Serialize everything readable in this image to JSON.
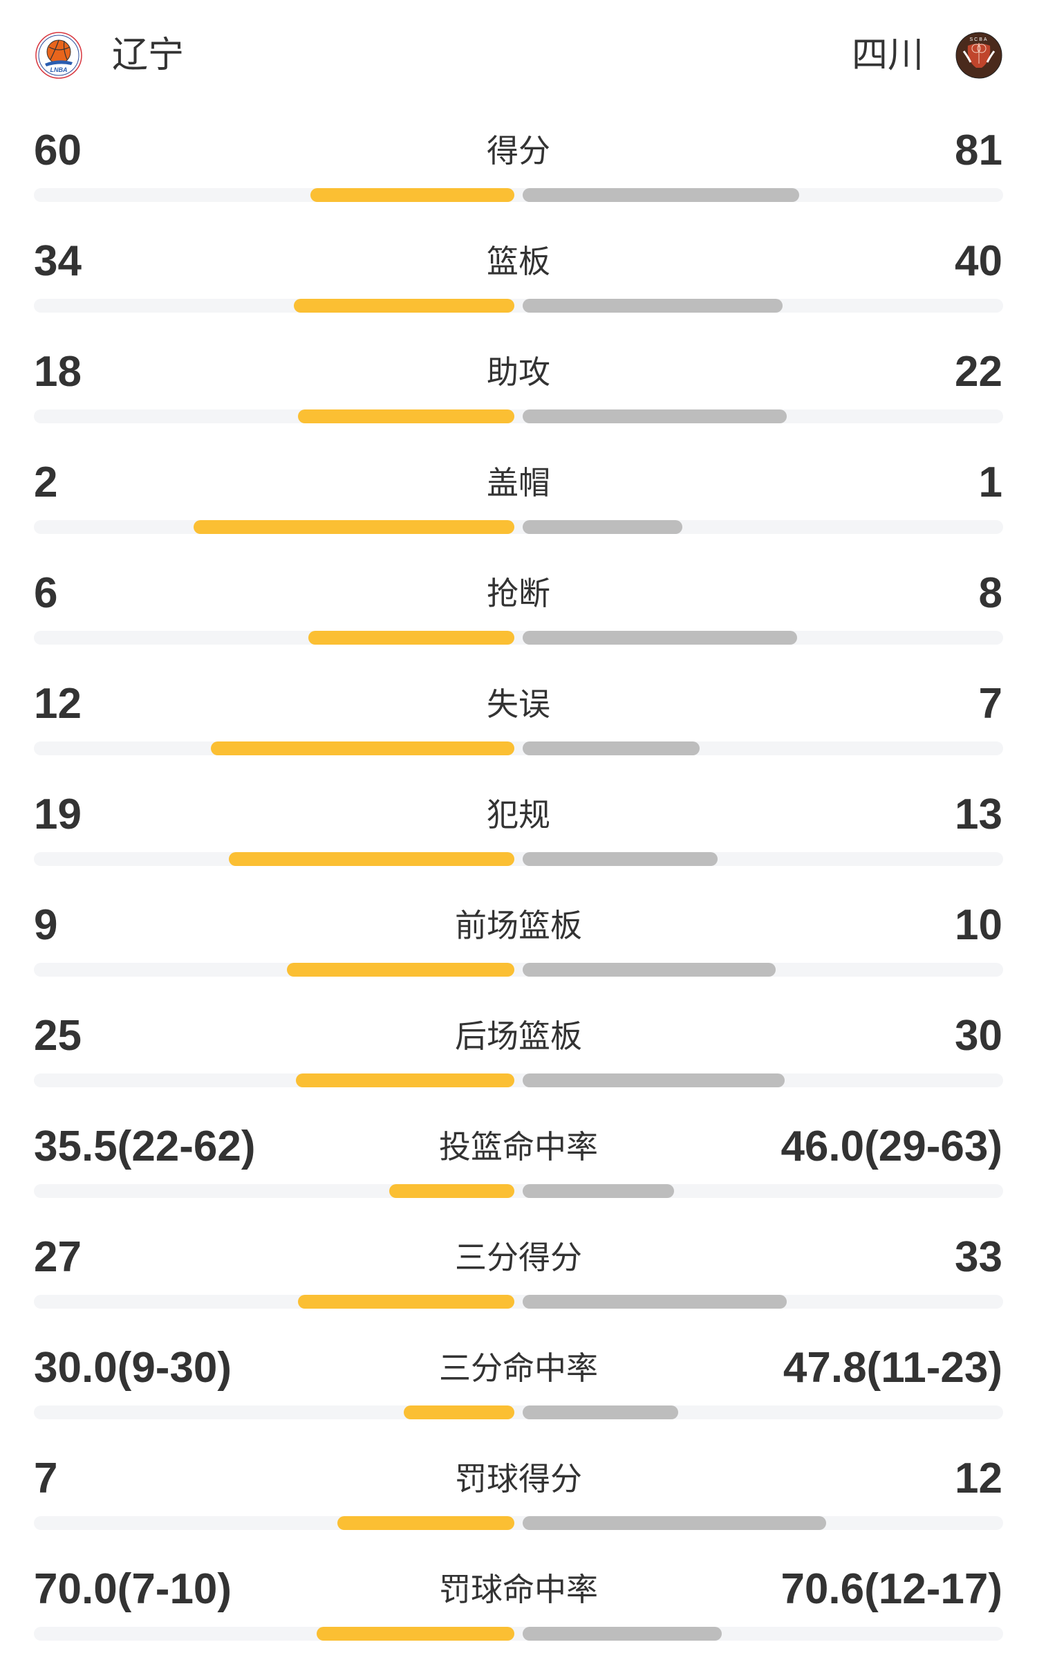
{
  "header": {
    "home_team": "辽宁",
    "away_team": "四川",
    "home_logo_text": "LNBA",
    "away_logo_text": "SCBA"
  },
  "colors": {
    "home_bar": "#fbbf33",
    "away_bar": "#bdbdbd",
    "track": "#f4f5f7"
  },
  "stats": [
    {
      "label": "得分",
      "home": "60",
      "away": "81",
      "home_fill": 0.425,
      "away_fill": 0.575
    },
    {
      "label": "篮板",
      "home": "34",
      "away": "40",
      "home_fill": 0.459,
      "away_fill": 0.541
    },
    {
      "label": "助攻",
      "home": "18",
      "away": "22",
      "home_fill": 0.45,
      "away_fill": 0.55
    },
    {
      "label": "盖帽",
      "home": "2",
      "away": "1",
      "home_fill": 0.667,
      "away_fill": 0.333
    },
    {
      "label": "抢断",
      "home": "6",
      "away": "8",
      "home_fill": 0.429,
      "away_fill": 0.571
    },
    {
      "label": "失误",
      "home": "12",
      "away": "7",
      "home_fill": 0.632,
      "away_fill": 0.368
    },
    {
      "label": "犯规",
      "home": "19",
      "away": "13",
      "home_fill": 0.594,
      "away_fill": 0.406
    },
    {
      "label": "前场篮板",
      "home": "9",
      "away": "10",
      "home_fill": 0.474,
      "away_fill": 0.526
    },
    {
      "label": "后场篮板",
      "home": "25",
      "away": "30",
      "home_fill": 0.455,
      "away_fill": 0.545
    },
    {
      "label": "投篮命中率",
      "home": "35.5(22-62)",
      "away": "46.0(29-63)",
      "home_fill": 0.26,
      "away_fill": 0.315
    },
    {
      "label": "三分得分",
      "home": "27",
      "away": "33",
      "home_fill": 0.45,
      "away_fill": 0.55
    },
    {
      "label": "三分命中率",
      "home": "30.0(9-30)",
      "away": "47.8(11-23)",
      "home_fill": 0.23,
      "away_fill": 0.324
    },
    {
      "label": "罚球得分",
      "home": "7",
      "away": "12",
      "home_fill": 0.368,
      "away_fill": 0.632
    },
    {
      "label": "罚球命中率",
      "home": "70.0(7-10)",
      "away": "70.6(12-17)",
      "home_fill": 0.412,
      "away_fill": 0.414
    }
  ]
}
